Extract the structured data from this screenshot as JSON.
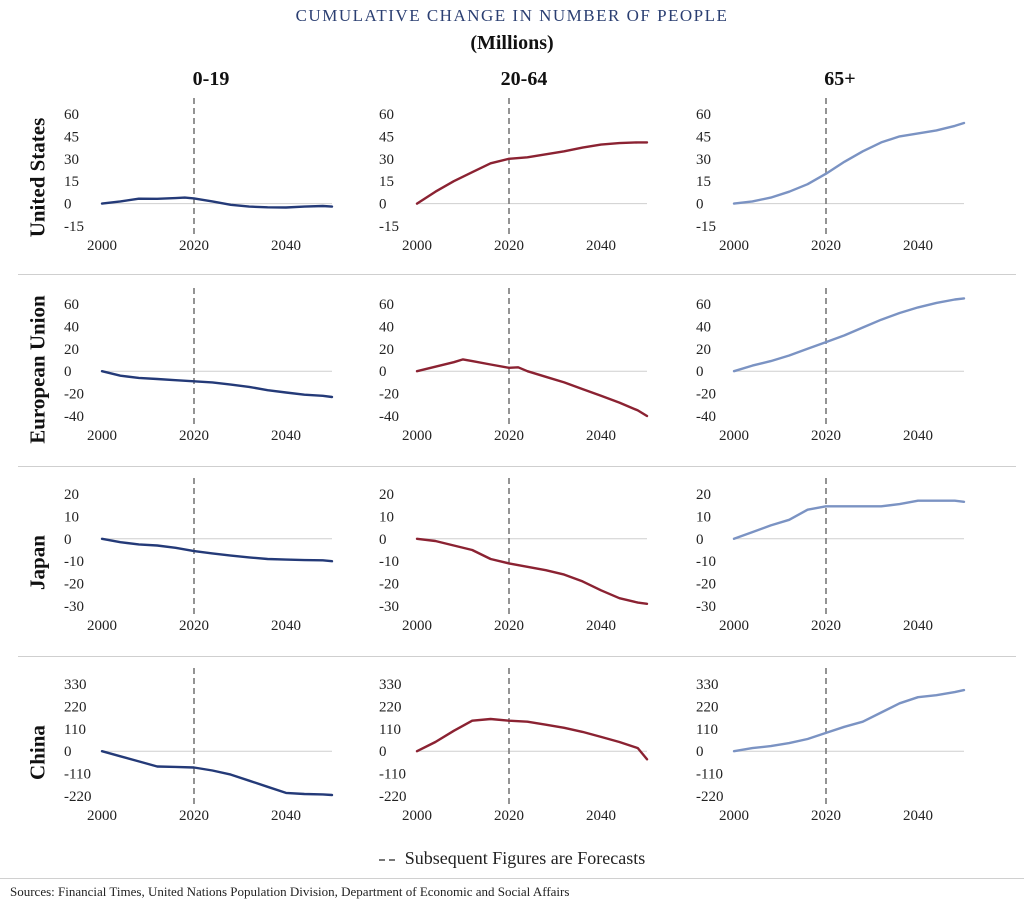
{
  "header": {
    "title": "CUMULATIVE CHANGE IN NUMBER OF PEOPLE",
    "subtitle": "(Millions)"
  },
  "columns": [
    "0-19",
    "20-64",
    "65+"
  ],
  "rows": [
    "United States",
    "European Union",
    "Japan",
    "China"
  ],
  "legend": {
    "label": "Subsequent Figures are Forecasts"
  },
  "source": "Sources: Financial Times, United Nations Population Division, Department of Economic and Social Affairs",
  "colors": {
    "age_0_19": "#243a78",
    "age_20_64": "#8b2232",
    "age_65_plus": "#7b93c3",
    "forecast_line": "#7a7a7a",
    "title": "#2b3f72"
  },
  "chart_data": [
    {
      "type": "line",
      "region": "United States",
      "group": "0-19",
      "x": [
        2000,
        2004,
        2008,
        2012,
        2016,
        2018,
        2020,
        2024,
        2028,
        2032,
        2036,
        2040,
        2044,
        2048,
        2050
      ],
      "y": [
        0,
        1.5,
        3.3,
        3.2,
        3.7,
        4.0,
        3.5,
        1.5,
        -0.8,
        -2,
        -2.5,
        -2.6,
        -2,
        -1.6,
        -2
      ],
      "ylim": [
        -15,
        60
      ],
      "yticks": [
        "60",
        "45",
        "30",
        "15",
        "0",
        "-15"
      ],
      "xticks": [
        "2000",
        "2020",
        "2040"
      ],
      "forecast_from": 2020
    },
    {
      "type": "line",
      "region": "United States",
      "group": "20-64",
      "x": [
        2000,
        2004,
        2008,
        2012,
        2016,
        2020,
        2024,
        2028,
        2032,
        2036,
        2040,
        2044,
        2048,
        2050
      ],
      "y": [
        0,
        8,
        15,
        21,
        27,
        30,
        31,
        33,
        35,
        37.5,
        39.5,
        40.5,
        41,
        41
      ],
      "ylim": [
        -15,
        60
      ],
      "yticks": [
        "60",
        "45",
        "30",
        "15",
        "0",
        "-15"
      ],
      "xticks": [
        "2000",
        "2020",
        "2040"
      ],
      "forecast_from": 2020
    },
    {
      "type": "line",
      "region": "United States",
      "group": "65+",
      "x": [
        2000,
        2004,
        2008,
        2012,
        2016,
        2020,
        2024,
        2028,
        2032,
        2036,
        2040,
        2044,
        2048,
        2050
      ],
      "y": [
        0,
        1.5,
        4,
        8,
        13,
        20,
        28,
        35,
        41,
        45,
        47,
        49,
        52,
        54
      ],
      "ylim": [
        -15,
        60
      ],
      "yticks": [
        "60",
        "45",
        "30",
        "15",
        "0",
        "-15"
      ],
      "xticks": [
        "2000",
        "2020",
        "2040"
      ],
      "forecast_from": 2020
    },
    {
      "type": "line",
      "region": "European Union",
      "group": "0-19",
      "x": [
        2000,
        2004,
        2008,
        2012,
        2016,
        2020,
        2024,
        2028,
        2032,
        2036,
        2040,
        2044,
        2048,
        2050
      ],
      "y": [
        0,
        -4,
        -6,
        -7,
        -8,
        -9,
        -10,
        -12,
        -14,
        -17,
        -19,
        -21,
        -22,
        -23
      ],
      "ylim": [
        -40,
        60
      ],
      "yticks": [
        "60",
        "40",
        "20",
        "0",
        "-20",
        "-40"
      ],
      "xticks": [
        "2000",
        "2020",
        "2040"
      ],
      "forecast_from": 2020
    },
    {
      "type": "line",
      "region": "European Union",
      "group": "20-64",
      "x": [
        2000,
        2004,
        2008,
        2010,
        2012,
        2016,
        2020,
        2022,
        2024,
        2028,
        2032,
        2036,
        2040,
        2044,
        2048,
        2050
      ],
      "y": [
        0,
        4,
        8,
        10.5,
        9,
        6,
        3,
        3.5,
        0,
        -5,
        -10,
        -16,
        -22,
        -28,
        -35,
        -40
      ],
      "ylim": [
        -40,
        60
      ],
      "yticks": [
        "60",
        "40",
        "20",
        "0",
        "-20",
        "-40"
      ],
      "xticks": [
        "2000",
        "2020",
        "2040"
      ],
      "forecast_from": 2020
    },
    {
      "type": "line",
      "region": "European Union",
      "group": "65+",
      "x": [
        2000,
        2004,
        2008,
        2012,
        2016,
        2020,
        2024,
        2028,
        2032,
        2036,
        2040,
        2044,
        2048,
        2050
      ],
      "y": [
        0,
        5,
        9,
        14,
        20,
        26,
        32,
        39,
        46,
        52,
        57,
        61,
        64,
        65
      ],
      "ylim": [
        -40,
        60
      ],
      "yticks": [
        "60",
        "40",
        "20",
        "0",
        "-20",
        "-40"
      ],
      "xticks": [
        "2000",
        "2020",
        "2040"
      ],
      "forecast_from": 2020
    },
    {
      "type": "line",
      "region": "Japan",
      "group": "0-19",
      "x": [
        2000,
        2004,
        2008,
        2012,
        2016,
        2020,
        2024,
        2028,
        2032,
        2036,
        2040,
        2044,
        2048,
        2050
      ],
      "y": [
        0,
        -1.5,
        -2.5,
        -3,
        -4,
        -5.5,
        -6.5,
        -7.5,
        -8.3,
        -9,
        -9.3,
        -9.5,
        -9.6,
        -10
      ],
      "ylim": [
        -30,
        20
      ],
      "yticks": [
        "20",
        "10",
        "0",
        "-10",
        "-20",
        "-30"
      ],
      "xticks": [
        "2000",
        "2020",
        "2040"
      ],
      "forecast_from": 2020
    },
    {
      "type": "line",
      "region": "Japan",
      "group": "20-64",
      "x": [
        2000,
        2004,
        2008,
        2012,
        2016,
        2020,
        2024,
        2028,
        2032,
        2036,
        2040,
        2044,
        2048,
        2050
      ],
      "y": [
        0,
        -1,
        -3,
        -5,
        -9,
        -11,
        -12.5,
        -14,
        -16,
        -19,
        -23,
        -26.5,
        -28.5,
        -29
      ],
      "ylim": [
        -30,
        20
      ],
      "yticks": [
        "20",
        "10",
        "0",
        "-10",
        "-20",
        "-30"
      ],
      "xticks": [
        "2000",
        "2020",
        "2040"
      ],
      "forecast_from": 2020
    },
    {
      "type": "line",
      "region": "Japan",
      "group": "65+",
      "x": [
        2000,
        2004,
        2008,
        2012,
        2016,
        2020,
        2024,
        2028,
        2032,
        2036,
        2040,
        2044,
        2048,
        2050
      ],
      "y": [
        0,
        3,
        6,
        8.5,
        13,
        14.5,
        14.5,
        14.5,
        14.5,
        15.5,
        17,
        17,
        17,
        16.5
      ],
      "ylim": [
        -30,
        20
      ],
      "yticks": [
        "20",
        "10",
        "0",
        "-10",
        "-20",
        "-30"
      ],
      "xticks": [
        "2000",
        "2020",
        "2040"
      ],
      "forecast_from": 2020
    },
    {
      "type": "line",
      "region": "China",
      "group": "0-19",
      "x": [
        2000,
        2004,
        2008,
        2012,
        2016,
        2020,
        2024,
        2028,
        2032,
        2036,
        2040,
        2044,
        2048,
        2050
      ],
      "y": [
        0,
        -25,
        -50,
        -75,
        -77,
        -80,
        -95,
        -115,
        -145,
        -175,
        -205,
        -210,
        -212,
        -215
      ],
      "ylim": [
        -220,
        330
      ],
      "yticks": [
        "330",
        "220",
        "110",
        "0",
        "-110",
        "-220"
      ],
      "xticks": [
        "2000",
        "2020",
        "2040"
      ],
      "forecast_from": 2020
    },
    {
      "type": "line",
      "region": "China",
      "group": "20-64",
      "x": [
        2000,
        2004,
        2008,
        2012,
        2016,
        2020,
        2024,
        2028,
        2032,
        2036,
        2040,
        2044,
        2048,
        2050
      ],
      "y": [
        0,
        45,
        100,
        150,
        158,
        150,
        145,
        130,
        115,
        95,
        70,
        45,
        15,
        -40
      ],
      "ylim": [
        -220,
        330
      ],
      "yticks": [
        "330",
        "220",
        "110",
        "0",
        "-110",
        "-220"
      ],
      "xticks": [
        "2000",
        "2020",
        "2040"
      ],
      "forecast_from": 2020
    },
    {
      "type": "line",
      "region": "China",
      "group": "65+",
      "x": [
        2000,
        2004,
        2008,
        2012,
        2016,
        2020,
        2024,
        2028,
        2032,
        2036,
        2040,
        2044,
        2048,
        2050
      ],
      "y": [
        0,
        15,
        25,
        40,
        60,
        90,
        120,
        145,
        190,
        235,
        265,
        275,
        290,
        300
      ],
      "ylim": [
        -220,
        330
      ],
      "yticks": [
        "330",
        "220",
        "110",
        "0",
        "-110",
        "-220"
      ],
      "xticks": [
        "2000",
        "2020",
        "2040"
      ],
      "forecast_from": 2020
    }
  ]
}
